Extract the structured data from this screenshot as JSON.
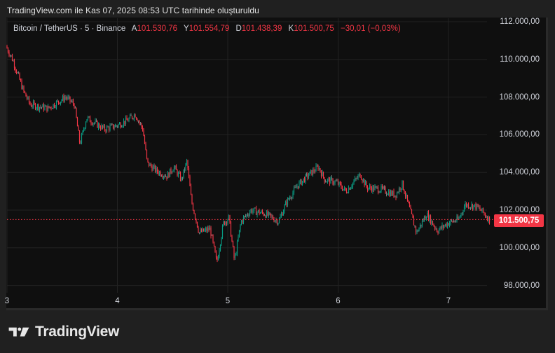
{
  "caption": "TradingView.com ile Kas 07, 2025 08:53 UTC tarihinde oluşturuldu",
  "legend": {
    "symbol": "Bitcoin / TetherUS · 5 · Binance",
    "open_label": "A",
    "open_value": "101.530,76",
    "high_label": "Y",
    "high_value": "101.554,79",
    "low_label": "D",
    "low_value": "101.438,39",
    "close_label": "K",
    "close_value": "101.500,75",
    "change": "−30,01 (−0,03%)"
  },
  "current_price_tag": "101.500,75",
  "footer": {
    "brand": "TradingView"
  },
  "colors": {
    "up": "#089981",
    "down": "#f23645",
    "neutral": "#7a7a7a",
    "background": "#0f0f0f",
    "grid": "#222222",
    "price_line": "#f23645"
  },
  "chart_data": {
    "type": "candlestick",
    "title": "Bitcoin / TetherUS · 5 · Binance",
    "xlabel": "",
    "ylabel": "",
    "x_ticks": [
      "3",
      "4",
      "5",
      "6",
      "7"
    ],
    "y_ticks": [
      "112.000,00",
      "110.000,00",
      "108.000,00",
      "106.000,00",
      "104.000,00",
      "102.000,00",
      "100.000,00",
      "98.000,00"
    ],
    "ylim": [
      97500,
      112300
    ],
    "grid": true,
    "last_price": 101500.75,
    "ohlc_last": {
      "open": 101530.76,
      "high": 101554.79,
      "low": 101438.39,
      "close": 101500.75,
      "change": -30.01,
      "change_pct": -0.03
    },
    "price_path": [
      {
        "day": 3.0,
        "price": 110700
      },
      {
        "day": 3.06,
        "price": 110000
      },
      {
        "day": 3.16,
        "price": 108300
      },
      {
        "day": 3.22,
        "price": 107600
      },
      {
        "day": 3.38,
        "price": 107400
      },
      {
        "day": 3.54,
        "price": 108000
      },
      {
        "day": 3.62,
        "price": 107600
      },
      {
        "day": 3.67,
        "price": 105500
      },
      {
        "day": 3.73,
        "price": 106900
      },
      {
        "day": 3.89,
        "price": 106300
      },
      {
        "day": 4.01,
        "price": 106500
      },
      {
        "day": 4.11,
        "price": 106800
      },
      {
        "day": 4.17,
        "price": 107100
      },
      {
        "day": 4.24,
        "price": 106300
      },
      {
        "day": 4.28,
        "price": 104500
      },
      {
        "day": 4.36,
        "price": 104100
      },
      {
        "day": 4.46,
        "price": 103800
      },
      {
        "day": 4.52,
        "price": 104300
      },
      {
        "day": 4.59,
        "price": 103600
      },
      {
        "day": 4.64,
        "price": 104600
      },
      {
        "day": 4.68,
        "price": 102500
      },
      {
        "day": 4.75,
        "price": 100800
      },
      {
        "day": 4.85,
        "price": 101000
      },
      {
        "day": 4.91,
        "price": 99200
      },
      {
        "day": 4.97,
        "price": 101300
      },
      {
        "day": 5.02,
        "price": 101600
      },
      {
        "day": 5.07,
        "price": 99300
      },
      {
        "day": 5.13,
        "price": 101400
      },
      {
        "day": 5.22,
        "price": 102000
      },
      {
        "day": 5.35,
        "price": 101800
      },
      {
        "day": 5.47,
        "price": 101400
      },
      {
        "day": 5.54,
        "price": 102400
      },
      {
        "day": 5.64,
        "price": 103300
      },
      {
        "day": 5.73,
        "price": 103800
      },
      {
        "day": 5.83,
        "price": 104300
      },
      {
        "day": 5.89,
        "price": 103600
      },
      {
        "day": 5.99,
        "price": 103500
      },
      {
        "day": 6.08,
        "price": 103000
      },
      {
        "day": 6.21,
        "price": 103900
      },
      {
        "day": 6.27,
        "price": 103200
      },
      {
        "day": 6.4,
        "price": 103100
      },
      {
        "day": 6.53,
        "price": 102800
      },
      {
        "day": 6.59,
        "price": 103400
      },
      {
        "day": 6.66,
        "price": 102000
      },
      {
        "day": 6.72,
        "price": 100800
      },
      {
        "day": 6.81,
        "price": 101800
      },
      {
        "day": 6.91,
        "price": 100900
      },
      {
        "day": 7.0,
        "price": 101300
      },
      {
        "day": 7.1,
        "price": 101500
      },
      {
        "day": 7.16,
        "price": 102300
      },
      {
        "day": 7.26,
        "price": 102200
      },
      {
        "day": 7.32,
        "price": 101900
      },
      {
        "day": 7.38,
        "price": 101500
      }
    ]
  }
}
